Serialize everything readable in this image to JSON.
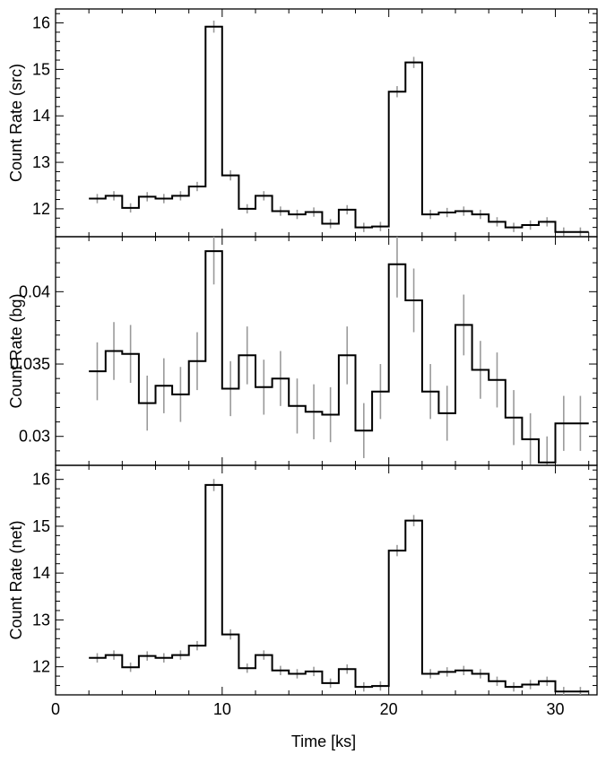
{
  "chart_data": {
    "type": "line",
    "style": "step histogram with error bars",
    "xlabel": "Time [ks]",
    "xlim": [
      0,
      32.5
    ],
    "xticks": [
      0,
      10,
      20,
      30
    ],
    "colors": {
      "line": "#000000",
      "error_bars": "#9a9a9a"
    },
    "panels": [
      {
        "ylabel": "Count Rate (src)",
        "ylim": [
          11.4,
          16.3
        ],
        "yticks": [
          12,
          13,
          14,
          15,
          16
        ],
        "x": [
          2.5,
          3.5,
          4.5,
          5.5,
          6.5,
          7.5,
          8.5,
          9.5,
          10.5,
          11.5,
          12.5,
          13.5,
          14.5,
          15.5,
          16.5,
          17.5,
          18.5,
          19.5,
          20.5,
          21.5,
          22.5,
          23.5,
          24.5,
          25.5,
          26.5,
          27.5,
          28.5,
          29.5,
          30.5,
          31.5
        ],
        "values": [
          12.22,
          12.28,
          12.02,
          12.26,
          12.22,
          12.28,
          12.48,
          15.92,
          12.72,
          12.0,
          12.28,
          11.95,
          11.88,
          11.93,
          11.68,
          11.98,
          11.6,
          11.62,
          14.52,
          15.15,
          11.88,
          11.92,
          11.95,
          11.88,
          11.72,
          11.6,
          11.65,
          11.72,
          11.5,
          11.5
        ],
        "errors": [
          0.1,
          0.1,
          0.1,
          0.1,
          0.1,
          0.1,
          0.1,
          0.13,
          0.11,
          0.1,
          0.1,
          0.1,
          0.1,
          0.1,
          0.1,
          0.1,
          0.1,
          0.1,
          0.12,
          0.12,
          0.1,
          0.1,
          0.1,
          0.1,
          0.1,
          0.1,
          0.1,
          0.1,
          0.1,
          0.1
        ]
      },
      {
        "ylabel": "Count Rate (bg)",
        "ylim": [
          0.028,
          0.0438
        ],
        "yticks": [
          0.03,
          0.035,
          0.04
        ],
        "yticklabels": [
          "0.03",
          "0.035",
          "0.04"
        ],
        "x": [
          2.5,
          3.5,
          4.5,
          5.5,
          6.5,
          7.5,
          8.5,
          9.5,
          10.5,
          11.5,
          12.5,
          13.5,
          14.5,
          15.5,
          16.5,
          17.5,
          18.5,
          19.5,
          20.5,
          21.5,
          22.5,
          23.5,
          24.5,
          25.5,
          26.5,
          27.5,
          28.5,
          29.5,
          30.5,
          31.5
        ],
        "values": [
          0.0345,
          0.0359,
          0.0357,
          0.0323,
          0.0335,
          0.0329,
          0.0352,
          0.0428,
          0.0333,
          0.0356,
          0.0334,
          0.034,
          0.0321,
          0.0317,
          0.0315,
          0.0356,
          0.0304,
          0.0331,
          0.0419,
          0.0394,
          0.0331,
          0.0316,
          0.0377,
          0.0346,
          0.0339,
          0.0313,
          0.0298,
          0.0282,
          0.0309,
          0.0309
        ],
        "errors": [
          0.002,
          0.002,
          0.002,
          0.0019,
          0.0019,
          0.0019,
          0.002,
          0.0023,
          0.0019,
          0.002,
          0.0019,
          0.0019,
          0.0019,
          0.0019,
          0.0019,
          0.002,
          0.0019,
          0.0019,
          0.0023,
          0.0022,
          0.0019,
          0.0019,
          0.0021,
          0.002,
          0.0019,
          0.0019,
          0.0018,
          0.0018,
          0.0019,
          0.0019
        ]
      },
      {
        "ylabel": "Count Rate (net)",
        "ylim": [
          11.4,
          16.3
        ],
        "yticks": [
          12,
          13,
          14,
          15,
          16
        ],
        "x": [
          2.5,
          3.5,
          4.5,
          5.5,
          6.5,
          7.5,
          8.5,
          9.5,
          10.5,
          11.5,
          12.5,
          13.5,
          14.5,
          15.5,
          16.5,
          17.5,
          18.5,
          19.5,
          20.5,
          21.5,
          22.5,
          23.5,
          24.5,
          25.5,
          26.5,
          27.5,
          28.5,
          29.5,
          30.5,
          31.5
        ],
        "values": [
          12.19,
          12.25,
          11.99,
          12.23,
          12.19,
          12.25,
          12.45,
          15.88,
          12.69,
          11.97,
          12.25,
          11.92,
          11.85,
          11.9,
          11.65,
          11.95,
          11.57,
          11.59,
          14.48,
          15.12,
          11.85,
          11.89,
          11.92,
          11.85,
          11.69,
          11.57,
          11.62,
          11.69,
          11.47,
          11.47
        ],
        "errors": [
          0.1,
          0.1,
          0.1,
          0.1,
          0.1,
          0.1,
          0.1,
          0.13,
          0.11,
          0.1,
          0.1,
          0.1,
          0.1,
          0.1,
          0.1,
          0.1,
          0.1,
          0.1,
          0.12,
          0.12,
          0.1,
          0.1,
          0.1,
          0.1,
          0.1,
          0.1,
          0.1,
          0.1,
          0.1,
          0.1
        ]
      }
    ]
  }
}
